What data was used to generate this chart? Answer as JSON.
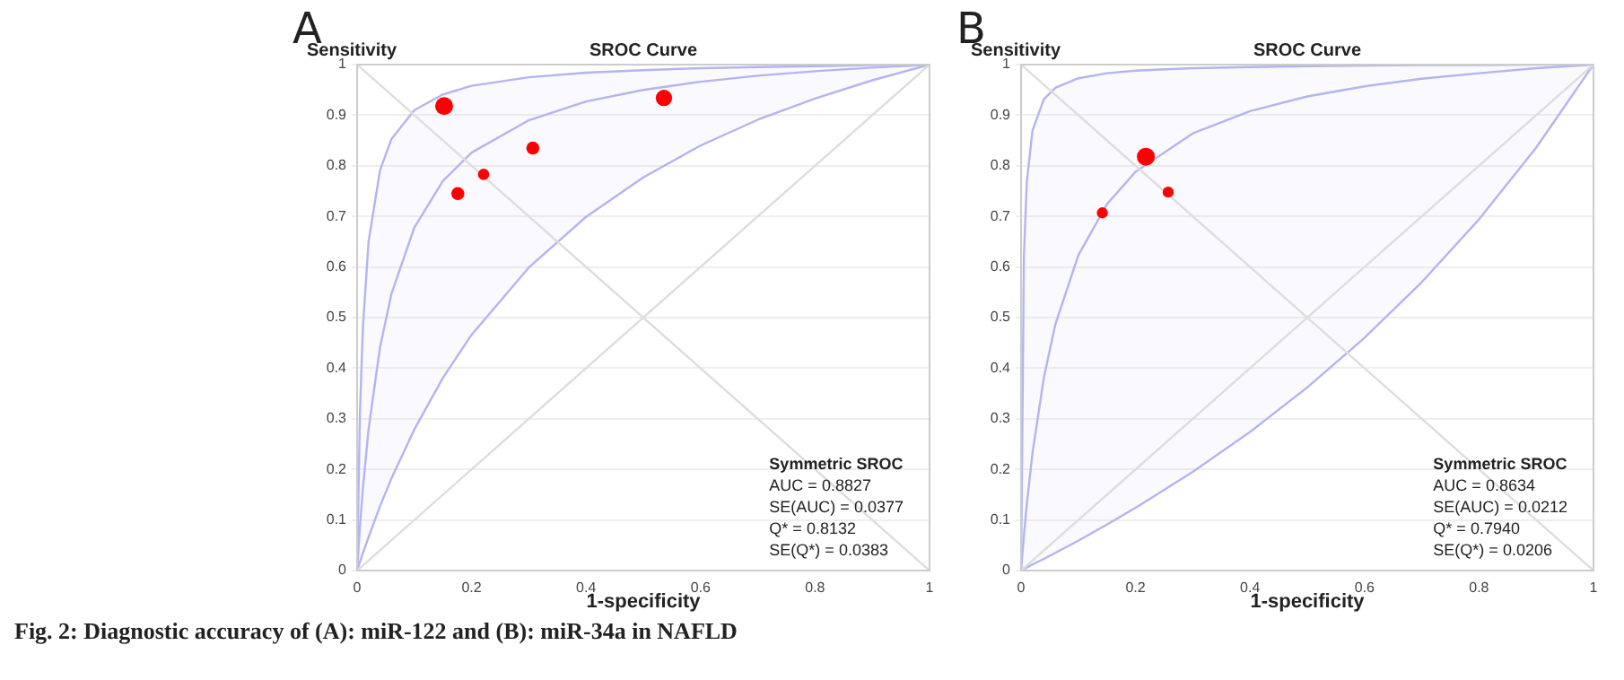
{
  "chart_data": [
    {
      "type": "bubble",
      "title": "SROC Curve",
      "xlabel": "1-specificity",
      "ylabel": "Sensitivity",
      "xlim": [
        0,
        1
      ],
      "ylim": [
        0,
        1
      ],
      "xticks": [
        0,
        0.2,
        0.4,
        0.6,
        0.8,
        1
      ],
      "yticks": [
        0,
        0.1,
        0.2,
        0.3,
        0.4,
        0.5,
        0.6,
        0.7,
        0.8,
        0.9,
        1
      ],
      "grid": "y",
      "legend": false,
      "marker": "circle",
      "annotations": [
        "A",
        "Symmetric SROC",
        "AUC = 0.8827",
        "SE(AUC) = 0.0377",
        "Q* = 0.8132",
        "SE(Q*) = 0.0383",
        "Fig. 2: Diagnostic accuracy of (A): miR-122 and (B): miR-34a in NAFLD"
      ],
      "series": [
        {
          "type": "line",
          "marker": "none",
          "color": "#dddddd",
          "x": [
            0,
            1
          ],
          "values": [
            0,
            1
          ]
        },
        {
          "type": "line",
          "marker": "none",
          "color": "#dddddd",
          "x": [
            0,
            1
          ],
          "values": [
            1,
            0
          ]
        },
        {
          "type": "line",
          "marker": "none",
          "color": "#b4b4f0",
          "x": [
            0,
            0.005,
            0.01,
            0.02,
            0.04,
            0.06,
            0.1,
            0.15,
            0.2,
            0.3,
            0.4,
            0.5,
            0.6,
            0.7,
            0.8,
            0.9,
            1
          ],
          "values": [
            0,
            0.087,
            0.161,
            0.279,
            0.441,
            0.547,
            0.678,
            0.77,
            0.826,
            0.89,
            0.927,
            0.95,
            0.966,
            0.978,
            0.987,
            0.994,
            1
          ],
          "upper": [
            0,
            0.314,
            0.479,
            0.65,
            0.791,
            0.853,
            0.91,
            0.941,
            0.958,
            0.975,
            0.984,
            0.989,
            0.993,
            0.995,
            0.997,
            0.999,
            1
          ],
          "lower": [
            0,
            0.017,
            0.034,
            0.066,
            0.127,
            0.182,
            0.279,
            0.381,
            0.466,
            0.599,
            0.699,
            0.777,
            0.84,
            0.891,
            0.933,
            0.969,
            1
          ]
        },
        {
          "color": "#ff0000",
          "x": [
            0.152,
            0.536,
            0.307,
            0.221,
            0.176
          ],
          "values": [
            0.918,
            0.934,
            0.835,
            0.783,
            0.745
          ],
          "sizes": [
            1,
            0.83,
            0.53,
            0.4,
            0.53
          ]
        }
      ]
    },
    {
      "type": "bubble",
      "title": "SROC Curve",
      "xlabel": "1-specificity",
      "ylabel": "Sensitivity",
      "xlim": [
        0,
        1
      ],
      "ylim": [
        0,
        1
      ],
      "xticks": [
        0,
        0.2,
        0.4,
        0.6,
        0.8,
        1
      ],
      "yticks": [
        0,
        0.1,
        0.2,
        0.3,
        0.4,
        0.5,
        0.6,
        0.7,
        0.8,
        0.9,
        1
      ],
      "grid": "y",
      "legend": false,
      "marker": "circle",
      "annotations": [
        "B",
        "Symmetric SROC",
        "AUC = 0.8634",
        "SE(AUC) = 0.0212",
        "Q* = 0.7940",
        "SE(Q*) = 0.0206"
      ],
      "series": [
        {
          "type": "line",
          "marker": "none",
          "color": "#dddddd",
          "x": [
            0,
            1
          ],
          "values": [
            0,
            1
          ]
        },
        {
          "type": "line",
          "marker": "none",
          "color": "#dddddd",
          "x": [
            0,
            1
          ],
          "values": [
            1,
            0
          ]
        },
        {
          "type": "line",
          "marker": "none",
          "color": "#b4b4f0",
          "x": [
            0,
            0.005,
            0.01,
            0.02,
            0.04,
            0.06,
            0.1,
            0.15,
            0.2,
            0.3,
            0.4,
            0.5,
            0.6,
            0.7,
            0.8,
            0.9,
            1
          ],
          "values": [
            0,
            0.069,
            0.13,
            0.233,
            0.382,
            0.487,
            0.623,
            0.724,
            0.788,
            0.864,
            0.908,
            0.937,
            0.957,
            0.972,
            0.983,
            0.993,
            1
          ],
          "upper": [
            0,
            0.622,
            0.768,
            0.87,
            0.932,
            0.954,
            0.973,
            0.983,
            0.988,
            0.993,
            0.995,
            0.997,
            0.998,
            0.999,
            0.999,
            1,
            1
          ],
          "lower": [
            0,
            0.003,
            0.006,
            0.012,
            0.023,
            0.035,
            0.059,
            0.091,
            0.124,
            0.195,
            0.274,
            0.362,
            0.46,
            0.57,
            0.694,
            0.836,
            1
          ]
        },
        {
          "color": "#ff0000",
          "x": [
            0.218,
            0.142,
            0.257
          ],
          "values": [
            0.818,
            0.707,
            0.748
          ],
          "sizes": [
            1,
            0.38,
            0.38
          ]
        }
      ]
    }
  ]
}
